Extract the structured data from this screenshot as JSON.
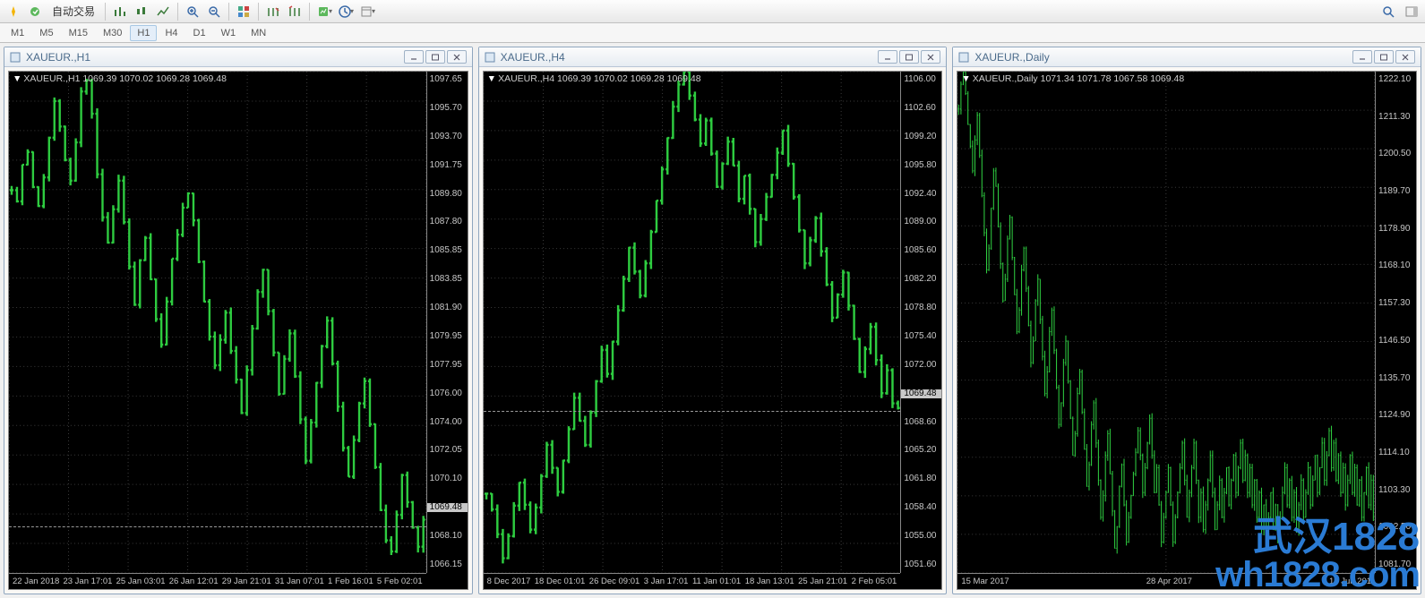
{
  "toolbar": {
    "auto_trade_label": "自动交易",
    "icons": [
      "expert-icon",
      "auto-trade-icon",
      "bar-chart-icon",
      "candle-chart-icon",
      "line-chart-icon",
      "zoom-in-icon",
      "zoom-out-icon",
      "tile-windows-icon",
      "shift-icon",
      "scroll-icon",
      "indicator-icon",
      "period-icon",
      "template-icon"
    ],
    "search_icon": "search-icon",
    "toggle_icon": "panel-toggle-icon"
  },
  "timeframes": {
    "items": [
      "M1",
      "M5",
      "M15",
      "M30",
      "H1",
      "H4",
      "D1",
      "W1",
      "MN"
    ],
    "active": "H1"
  },
  "panels": [
    {
      "title": "XAUEUR.,H1",
      "ohlc_label": "XAUEUR.,H1  1069.39 1070.02 1069.28 1069.48",
      "type": "ohlc-bar",
      "colors": {
        "bar": "#2ecc40",
        "bg": "#000000",
        "grid": "#3a3a3a",
        "text": "#c8c8c8"
      },
      "ylim": [
        1066.15,
        1097.65
      ],
      "yticks": [
        "1097.65",
        "1095.70",
        "1093.70",
        "1091.75",
        "1089.80",
        "1087.80",
        "1085.85",
        "1083.85",
        "1081.90",
        "1079.95",
        "1077.95",
        "1076.00",
        "1074.00",
        "1072.05",
        "1070.10",
        "1069.48",
        "1068.10",
        "1066.15"
      ],
      "ytick_hl": "1069.48",
      "price_line": 1069.48,
      "xticks": [
        "22 Jan 2018",
        "23 Jan 17:01",
        "25 Jan 03:01",
        "26 Jan 12:01",
        "29 Jan 21:01",
        "31 Jan 07:01",
        "1 Feb 16:01",
        "5 Feb 02:01"
      ],
      "series_close": [
        1090.2,
        1089.5,
        1091.8,
        1092.6,
        1090.4,
        1089.2,
        1091.0,
        1093.5,
        1095.8,
        1094.2,
        1092.1,
        1090.8,
        1093.2,
        1096.4,
        1097.1,
        1095.0,
        1091.2,
        1088.5,
        1086.9,
        1089.0,
        1090.8,
        1088.2,
        1085.4,
        1083.0,
        1085.8,
        1087.2,
        1084.6,
        1082.1,
        1080.5,
        1083.2,
        1085.9,
        1087.4,
        1089.1,
        1090.0,
        1088.3,
        1085.7,
        1083.2,
        1081.0,
        1079.2,
        1080.8,
        1082.5,
        1080.1,
        1078.3,
        1076.2,
        1078.9,
        1081.5,
        1083.8,
        1085.2,
        1082.6,
        1080.0,
        1077.4,
        1079.6,
        1081.2,
        1078.5,
        1075.8,
        1073.2,
        1075.6,
        1078.1,
        1080.4,
        1082.0,
        1079.3,
        1076.6,
        1074.0,
        1072.2,
        1074.5,
        1076.8,
        1078.2,
        1075.5,
        1072.8,
        1070.1,
        1068.2,
        1067.5,
        1069.8,
        1072.3,
        1070.6,
        1069.0,
        1067.8,
        1069.5
      ]
    },
    {
      "title": "XAUEUR.,H4",
      "ohlc_label": "XAUEUR.,H4  1069.39 1070.02 1069.28 1069.48",
      "type": "ohlc-bar",
      "colors": {
        "bar": "#2ecc40",
        "bg": "#000000",
        "grid": "#3a3a3a",
        "text": "#c8c8c8"
      },
      "ylim": [
        1051.6,
        1106.0
      ],
      "yticks": [
        "1106.00",
        "1102.60",
        "1099.20",
        "1095.80",
        "1092.40",
        "1089.00",
        "1085.60",
        "1082.20",
        "1078.80",
        "1075.40",
        "1072.00",
        "1069.48",
        "1068.60",
        "1065.20",
        "1061.80",
        "1058.40",
        "1055.00",
        "1051.60"
      ],
      "ytick_hl": "1069.48",
      "price_line": 1069.48,
      "xticks": [
        "8 Dec 2017",
        "18 Dec 01:01",
        "26 Dec 09:01",
        "3 Jan 17:01",
        "11 Jan 01:01",
        "18 Jan 13:01",
        "25 Jan 21:01",
        "2 Feb 05:01"
      ],
      "series_close": [
        1060.2,
        1058.5,
        1055.8,
        1053.2,
        1055.6,
        1058.9,
        1061.4,
        1059.0,
        1056.3,
        1058.7,
        1062.1,
        1065.5,
        1063.0,
        1060.4,
        1063.8,
        1067.2,
        1070.6,
        1068.1,
        1065.5,
        1069.0,
        1072.4,
        1075.8,
        1073.2,
        1076.7,
        1080.1,
        1083.5,
        1086.9,
        1084.3,
        1081.7,
        1085.2,
        1088.6,
        1092.0,
        1095.4,
        1098.8,
        1102.2,
        1104.6,
        1106.0,
        1103.4,
        1100.8,
        1098.2,
        1100.7,
        1097.1,
        1093.5,
        1096.0,
        1098.4,
        1095.8,
        1092.2,
        1094.7,
        1091.1,
        1087.5,
        1090.0,
        1092.4,
        1094.8,
        1097.2,
        1099.6,
        1096.0,
        1092.4,
        1088.8,
        1085.2,
        1087.7,
        1090.1,
        1086.5,
        1082.9,
        1079.3,
        1081.8,
        1084.2,
        1080.6,
        1077.0,
        1073.4,
        1075.9,
        1078.3,
        1074.7,
        1071.1,
        1073.6,
        1070.0,
        1069.5
      ]
    },
    {
      "title": "XAUEUR.,Daily",
      "ohlc_label": "XAUEUR.,Daily  1071.34 1071.78 1067.58 1069.48",
      "type": "ohlc-bar",
      "colors": {
        "bar": "#2ecc40",
        "bg": "#000000",
        "grid": "#3a3a3a",
        "text": "#c8c8c8"
      },
      "ylim": [
        1060,
        1222.1
      ],
      "yticks": [
        "1222.10",
        "1211.30",
        "1200.50",
        "1189.70",
        "1178.90",
        "1168.10",
        "1157.30",
        "1146.50",
        "1135.70",
        "1124.90",
        "1114.10",
        "1103.30",
        "1092.50",
        "1081.70"
      ],
      "ytick_hl": null,
      "price_line": null,
      "xticks": [
        "15 Mar 2017",
        "28 Apr 2017",
        "13 Jun 201"
      ],
      "series_close": [
        1210,
        1218,
        1222,
        1215,
        1205,
        1198,
        1190,
        1200,
        1208,
        1195,
        1182,
        1170,
        1158,
        1165,
        1178,
        1190,
        1185,
        1172,
        1160,
        1148,
        1155,
        1168,
        1175,
        1162,
        1150,
        1138,
        1145,
        1158,
        1165,
        1152,
        1140,
        1128,
        1135,
        1148,
        1155,
        1142,
        1130,
        1118,
        1125,
        1138,
        1145,
        1132,
        1120,
        1108,
        1115,
        1128,
        1135,
        1122,
        1110,
        1098,
        1105,
        1118,
        1125,
        1112,
        1100,
        1088,
        1095,
        1108,
        1115,
        1102,
        1090,
        1078,
        1085,
        1098,
        1105,
        1092,
        1080,
        1068,
        1075,
        1088,
        1095,
        1082,
        1070,
        1078,
        1085,
        1092,
        1099,
        1106,
        1098,
        1086,
        1094,
        1102,
        1110,
        1098,
        1086,
        1094,
        1082,
        1070,
        1078,
        1086,
        1094,
        1082,
        1070,
        1078,
        1086,
        1094,
        1102,
        1090,
        1078,
        1086,
        1094,
        1102,
        1090,
        1078,
        1086,
        1074,
        1082,
        1090,
        1098,
        1086,
        1074,
        1082,
        1090,
        1078,
        1086,
        1094,
        1082,
        1090,
        1098,
        1086,
        1094,
        1102,
        1090,
        1098,
        1086,
        1094,
        1082,
        1090,
        1078,
        1086,
        1074,
        1082,
        1070,
        1078,
        1086,
        1074,
        1082,
        1070,
        1078,
        1086,
        1094,
        1082,
        1090,
        1078,
        1086,
        1074,
        1082,
        1090,
        1078,
        1086,
        1094,
        1082,
        1090,
        1098,
        1086,
        1094,
        1102,
        1090,
        1098,
        1106,
        1094,
        1102,
        1090,
        1098,
        1086,
        1094,
        1082,
        1090,
        1098,
        1086,
        1094,
        1082,
        1090,
        1078,
        1086,
        1094,
        1082,
        1090,
        1078
      ]
    }
  ],
  "watermark": {
    "line1": "武汉1828",
    "line2": "wh1828.com"
  },
  "window_controls": {
    "min": "–",
    "max": "❐",
    "close": "✕"
  }
}
